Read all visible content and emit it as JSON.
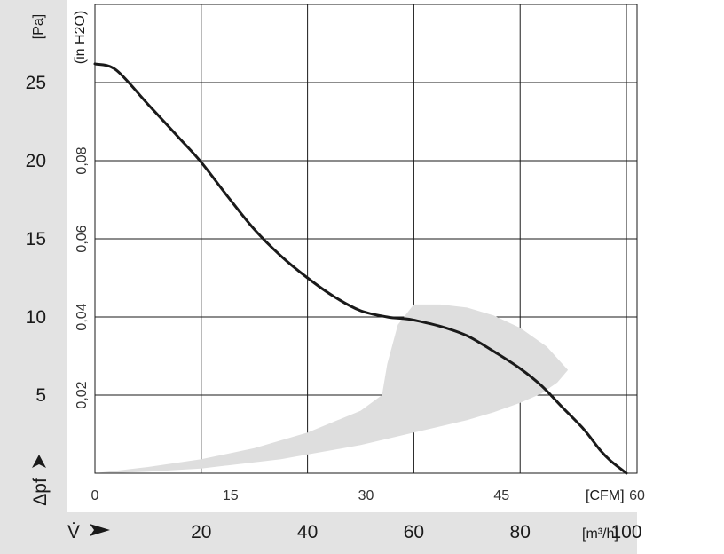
{
  "chart_data": {
    "type": "line",
    "title": "",
    "x_axis_primary": {
      "unit": "[CFM]",
      "ticks": [
        "0",
        "15",
        "30",
        "45",
        "60"
      ],
      "range": [
        0,
        60
      ]
    },
    "x_axis_secondary": {
      "symbol": "V̇",
      "unit": "[m³/h]",
      "ticks": [
        "20",
        "40",
        "60",
        "80",
        "100"
      ],
      "range": [
        0,
        102
      ]
    },
    "y_axis_primary": {
      "symbol": "Δpf",
      "unit": "[Pa]",
      "ticks": [
        "5",
        "10",
        "15",
        "20",
        "25"
      ],
      "range": [
        0,
        30
      ]
    },
    "y_axis_secondary": {
      "unit": "(in H2O)",
      "ticks": [
        "0,02",
        "0,04",
        "0,06",
        "0,08"
      ]
    },
    "grid": true,
    "series": [
      {
        "x_unit": "m³/h",
        "y_unit": "Pa",
        "color": "#1a1a1a",
        "x": [
          0,
          4,
          10,
          16,
          20,
          25,
          30,
          35,
          40,
          45,
          50,
          55,
          58,
          60,
          65,
          70,
          75,
          80,
          84,
          88,
          92,
          95,
          97,
          100
        ],
        "y": [
          26.2,
          25.8,
          23.6,
          21.4,
          19.9,
          17.7,
          15.6,
          13.9,
          12.5,
          11.3,
          10.4,
          10.0,
          9.9,
          9.8,
          9.4,
          8.8,
          7.8,
          6.7,
          5.6,
          4.2,
          2.8,
          1.5,
          0.8,
          0.0
        ]
      }
    ],
    "shaded_region": {
      "color": "#dedede",
      "boundary_x": [
        0,
        10,
        20,
        30,
        40,
        50,
        54,
        55,
        57,
        60,
        65,
        70,
        75,
        80,
        85,
        89,
        87,
        84,
        80,
        75,
        70,
        65,
        60,
        55,
        50,
        45,
        40,
        35,
        30,
        25,
        20,
        15,
        10,
        5,
        0
      ],
      "boundary_y": [
        0.0,
        0.4,
        0.9,
        1.6,
        2.6,
        4.0,
        5.0,
        7.0,
        9.5,
        10.8,
        10.8,
        10.6,
        10.1,
        9.3,
        8.1,
        6.6,
        5.8,
        5.1,
        4.5,
        3.9,
        3.4,
        3.0,
        2.6,
        2.2,
        1.8,
        1.5,
        1.2,
        0.9,
        0.7,
        0.5,
        0.3,
        0.2,
        0.1,
        0.03,
        0.0
      ]
    }
  }
}
